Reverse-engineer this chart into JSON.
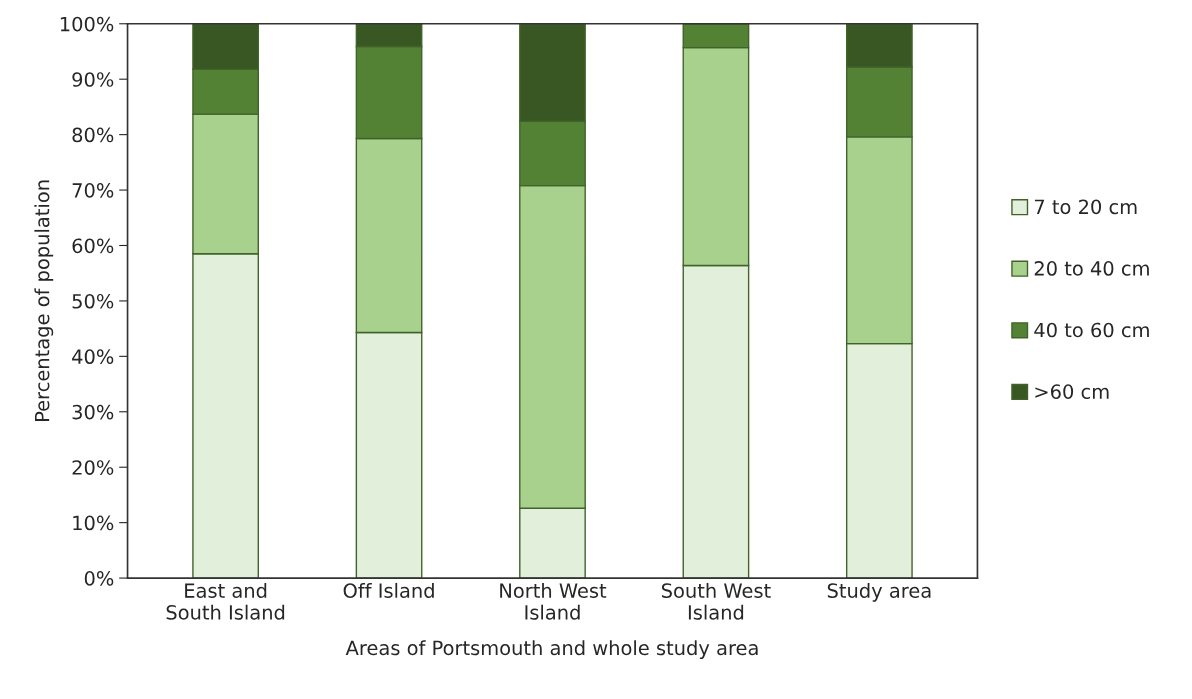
{
  "chart_data": {
    "type": "bar",
    "stacked": true,
    "xlabel": "Areas of Portsmouth and whole study area",
    "ylabel": "Percentage of population",
    "categories": [
      "East and\nSouth Island",
      "Off Island",
      "North West\nIsland",
      "South West\nIsland",
      "Study area"
    ],
    "series": [
      {
        "name": "7 to 20 cm",
        "color": "#e2efda",
        "values": [
          58.5,
          44.3,
          12.6,
          56.4,
          42.3
        ]
      },
      {
        "name": "20 to 40 cm",
        "color": "#a9d18e",
        "values": [
          25.2,
          35.0,
          58.2,
          39.3,
          37.3
        ]
      },
      {
        "name": "40 to 60 cm",
        "color": "#548235",
        "values": [
          8.1,
          16.6,
          11.6,
          4.3,
          12.6
        ]
      },
      {
        "name": ">60 cm",
        "color": "#385723",
        "values": [
          8.2,
          4.1,
          17.6,
          0,
          7.8
        ]
      }
    ],
    "ylim": [
      0,
      100
    ],
    "yticks": [
      {
        "value": 0,
        "label": "0%"
      },
      {
        "value": 10,
        "label": "10%"
      },
      {
        "value": 20,
        "label": "20%"
      },
      {
        "value": 30,
        "label": "30%"
      },
      {
        "value": 40,
        "label": "40%"
      },
      {
        "value": 50,
        "label": "50%"
      },
      {
        "value": 60,
        "label": "60%"
      },
      {
        "value": 70,
        "label": "70%"
      },
      {
        "value": 80,
        "label": "80%"
      },
      {
        "value": 90,
        "label": "90%"
      },
      {
        "value": 100,
        "label": "100%"
      }
    ],
    "grid": false,
    "legend": "right"
  }
}
